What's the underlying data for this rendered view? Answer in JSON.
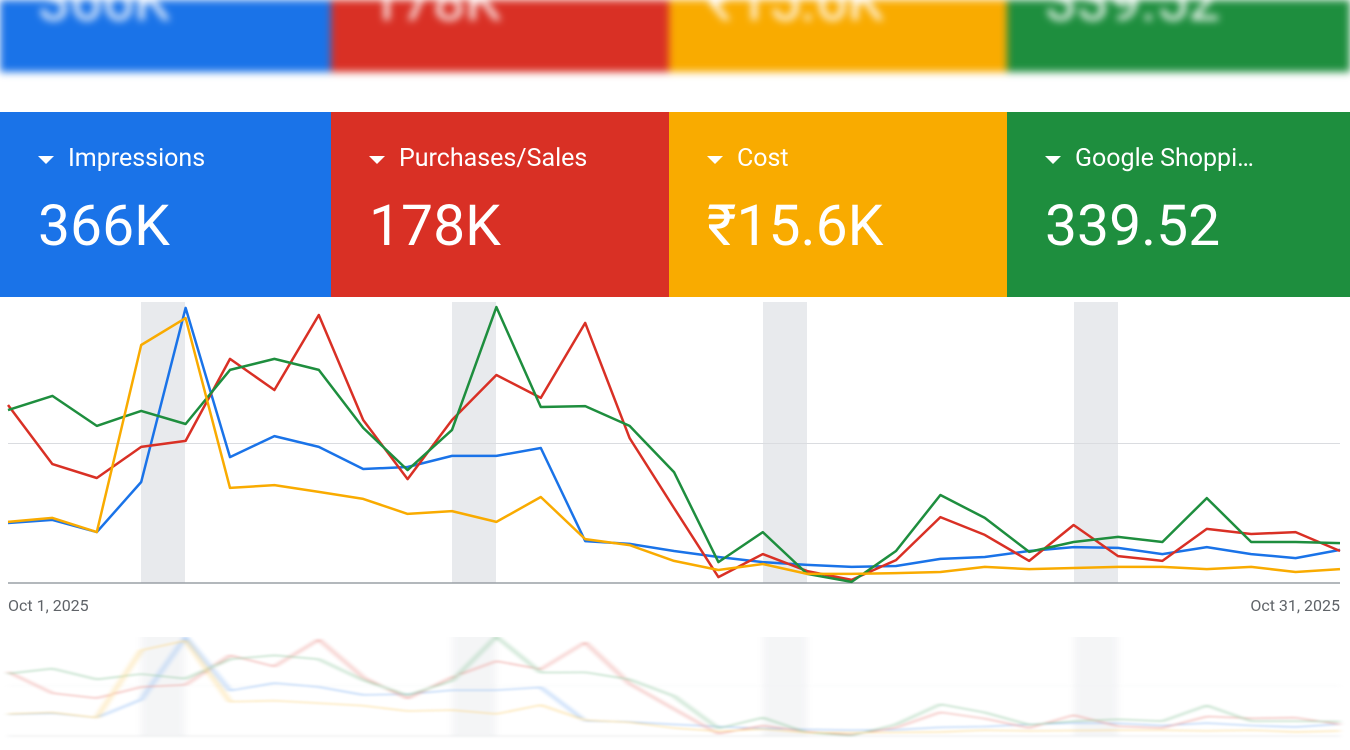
{
  "cards": [
    {
      "label": "Impressions",
      "value": "366K",
      "color": "#1a73e8"
    },
    {
      "label": "Purchases/Sales",
      "value": "178K",
      "color": "#d93025"
    },
    {
      "label": "Cost",
      "value": "₹15.6K",
      "color": "#f9ab00"
    },
    {
      "label": "Google Shoppi…",
      "value": "339.52",
      "color": "#1e8e3e"
    }
  ],
  "chart_data": {
    "type": "line",
    "categories": [
      "Oct 1, 2025",
      null,
      null,
      null,
      null,
      null,
      null,
      null,
      null,
      null,
      null,
      null,
      null,
      null,
      null,
      null,
      null,
      null,
      null,
      null,
      null,
      null,
      null,
      null,
      null,
      null,
      null,
      null,
      null,
      null,
      "Oct 31, 2025"
    ],
    "ylim": [
      0,
      100
    ],
    "grid": true,
    "series": [
      {
        "color": "#1a73e8",
        "values": [
          21.2,
          22.3,
          18.0,
          35.7,
          97.2,
          44.5,
          51.9,
          48.1,
          40.3,
          41.0,
          44.9,
          44.9,
          47.7,
          14.8,
          13.8,
          11.3,
          9.2,
          7.4,
          6.4,
          5.7,
          6.0,
          8.5,
          9.2,
          11.3,
          12.7,
          12.4,
          10.2,
          12.7,
          10.2,
          8.8,
          11.7
        ]
      },
      {
        "color": "#d93025",
        "values": [
          62.9,
          42.0,
          37.1,
          48.1,
          50.2,
          79.2,
          68.2,
          94.7,
          57.6,
          36.7,
          57.6,
          73.5,
          65.4,
          91.9,
          51.2,
          26.5,
          2.1,
          10.2,
          4.2,
          1.1,
          8.1,
          23.3,
          17.0,
          7.8,
          20.5,
          9.5,
          7.8,
          19.1,
          17.3,
          18.0,
          11.3
        ]
      },
      {
        "color": "#1e8e3e",
        "values": [
          61.1,
          66.1,
          55.5,
          60.8,
          56.2,
          75.3,
          79.2,
          75.3,
          54.8,
          39.9,
          54.1,
          97.5,
          62.2,
          62.5,
          55.5,
          39.2,
          7.4,
          18.0,
          3.2,
          0.4,
          11.3,
          31.1,
          23.0,
          11.0,
          14.5,
          16.3,
          14.5,
          30.0,
          14.5,
          14.5,
          14.1
        ]
      },
      {
        "color": "#f9ab00",
        "values": [
          21.6,
          23.0,
          18.0,
          84.1,
          93.6,
          33.6,
          34.6,
          32.2,
          29.7,
          24.4,
          25.4,
          21.6,
          30.4,
          15.5,
          13.4,
          7.8,
          4.6,
          6.7,
          3.2,
          3.2,
          3.5,
          3.9,
          5.7,
          4.9,
          5.3,
          5.7,
          5.7,
          4.9,
          5.7,
          3.9,
          4.9
        ]
      }
    ]
  }
}
